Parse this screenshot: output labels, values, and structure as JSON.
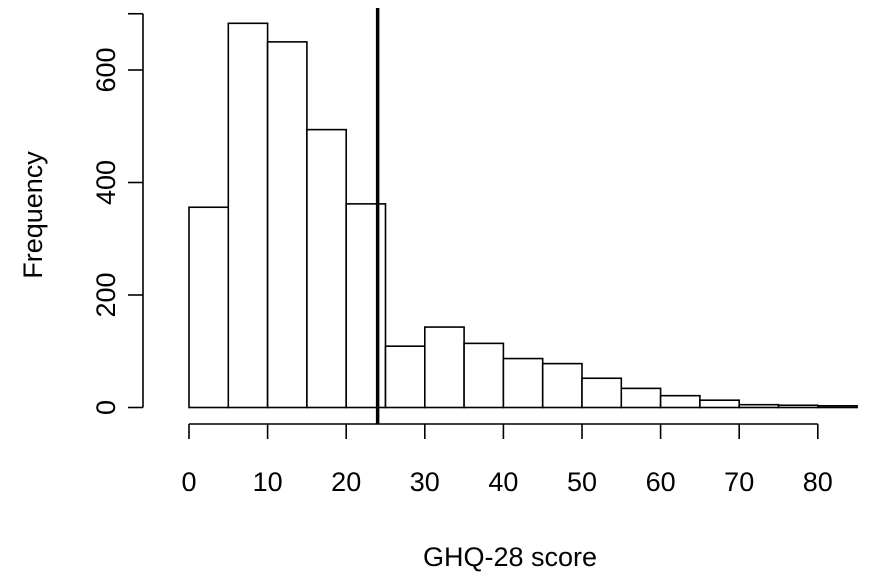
{
  "chart_data": {
    "type": "bar",
    "subtype": "histogram",
    "title": "",
    "xlabel": "GHQ-28 score",
    "ylabel": "Frequency",
    "bins": [
      {
        "x0": 0,
        "x1": 5,
        "count": 356
      },
      {
        "x0": 5,
        "x1": 10,
        "count": 683
      },
      {
        "x0": 10,
        "x1": 15,
        "count": 650
      },
      {
        "x0": 15,
        "x1": 20,
        "count": 494
      },
      {
        "x0": 20,
        "x1": 25,
        "count": 362
      },
      {
        "x0": 25,
        "x1": 30,
        "count": 109
      },
      {
        "x0": 30,
        "x1": 35,
        "count": 143
      },
      {
        "x0": 35,
        "x1": 40,
        "count": 114
      },
      {
        "x0": 40,
        "x1": 45,
        "count": 87
      },
      {
        "x0": 45,
        "x1": 50,
        "count": 78
      },
      {
        "x0": 50,
        "x1": 55,
        "count": 52
      },
      {
        "x0": 55,
        "x1": 60,
        "count": 34
      },
      {
        "x0": 60,
        "x1": 65,
        "count": 21
      },
      {
        "x0": 65,
        "x1": 70,
        "count": 13
      },
      {
        "x0": 70,
        "x1": 75,
        "count": 5
      },
      {
        "x0": 75,
        "x1": 80,
        "count": 4
      },
      {
        "x0": 80,
        "x1": 85,
        "count": 3
      }
    ],
    "x_ticks": [
      0,
      10,
      20,
      30,
      40,
      50,
      60,
      70,
      80
    ],
    "y_ticks": [
      0,
      200,
      400,
      600
    ],
    "xlim": [
      0,
      85
    ],
    "ylim": [
      0,
      700
    ],
    "reference_line_x": 24,
    "grid": false,
    "colors": {
      "bar_fill": "#ffffff",
      "stroke": "#000000"
    }
  }
}
